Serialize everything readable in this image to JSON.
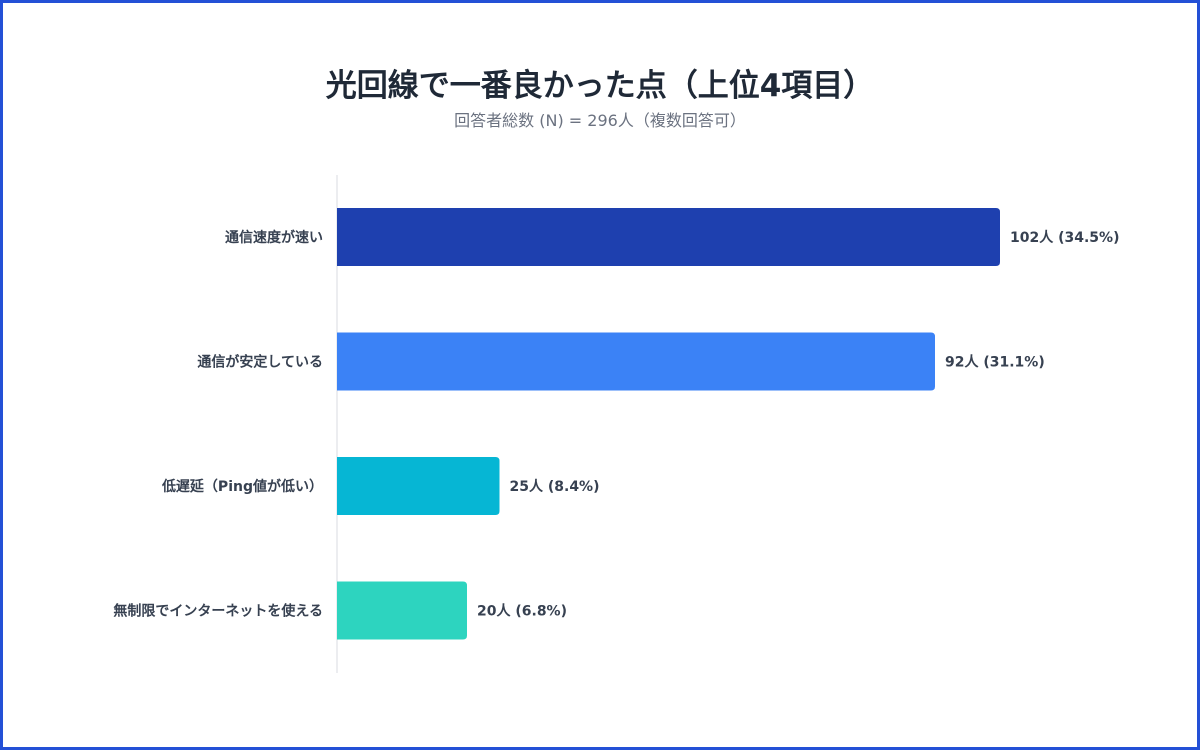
{
  "chart_data": {
    "type": "bar",
    "orientation": "horizontal",
    "title": "光回線で一番良かった点（上位4項目）",
    "subtitle": "回答者総数 (N) = 296人（複数回答可）",
    "categories": [
      "通信速度が速い",
      "通信が安定している",
      "低遅延（Ping値が低い）",
      "無制限でインターネットを使える"
    ],
    "values": [
      102,
      92,
      25,
      20
    ],
    "data_labels": [
      "102人 (34.5%)",
      "92人 (31.1%)",
      "25人 (8.4%)",
      "20人 (6.8%)"
    ],
    "colors": [
      "#1e40af",
      "#3b82f6",
      "#06b6d4",
      "#2dd4bf"
    ],
    "grid": false,
    "legend": "none"
  },
  "frame_color": "#2350d6"
}
